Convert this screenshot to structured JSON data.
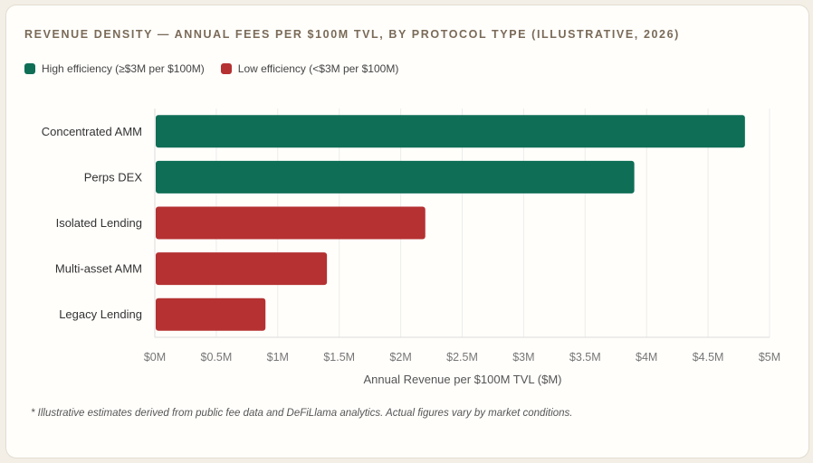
{
  "card": {
    "title": "REVENUE DENSITY — ANNUAL FEES PER $100M TVL, BY PROTOCOL TYPE (ILLUSTRATIVE, 2026)",
    "footnote": "* Illustrative estimates derived from public fee data and DeFiLlama analytics. Actual figures vary by market conditions."
  },
  "colors": {
    "high": "#0f6e56",
    "low": "#b53132",
    "grid": "#ececec",
    "tick_text": "#777777"
  },
  "legend": [
    {
      "label": "High efficiency (≥$3M per $100M)",
      "color": "#0f6e56"
    },
    {
      "label": "Low efficiency (<$3M per $100M)",
      "color": "#b53132"
    }
  ],
  "chart_data": {
    "type": "bar",
    "orientation": "horizontal",
    "title": "REVENUE DENSITY — ANNUAL FEES PER $100M TVL, BY PROTOCOL TYPE (ILLUSTRATIVE, 2026)",
    "categories": [
      "Concentrated AMM",
      "Perps DEX",
      "Isolated Lending",
      "Multi-asset AMM",
      "Legacy Lending"
    ],
    "values": [
      4.8,
      3.9,
      2.2,
      1.4,
      0.9
    ],
    "series_assignment": [
      "High efficiency",
      "High efficiency",
      "Low efficiency",
      "Low efficiency",
      "Low efficiency"
    ],
    "xlabel": "Annual Revenue per $100M TVL ($M)",
    "ylabel": "",
    "xlim": [
      0,
      5
    ],
    "xticks": [
      0,
      0.5,
      1,
      1.5,
      2,
      2.5,
      3,
      3.5,
      4,
      4.5,
      5
    ],
    "xtick_labels": [
      "$0M",
      "$0.5M",
      "$1M",
      "$1.5M",
      "$2M",
      "$2.5M",
      "$3M",
      "$3.5M",
      "$4M",
      "$4.5M",
      "$5M"
    ],
    "threshold": 3,
    "grid": true,
    "legend_position": "top-left"
  }
}
